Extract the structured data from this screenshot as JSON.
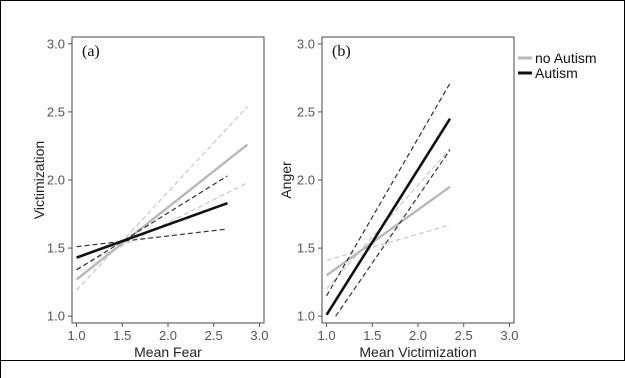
{
  "chart_data": [
    {
      "type": "line",
      "panel_label": "(a)",
      "xlabel": "Mean Fear",
      "ylabel": "Victimization",
      "xlim": [
        0.95,
        3.05
      ],
      "ylim": [
        0.95,
        3.05
      ],
      "x_ticks": [
        "1.0",
        "1.5",
        "2.0",
        "2.5",
        "3.0"
      ],
      "y_ticks": [
        "1.0",
        "1.5",
        "2.0",
        "2.5",
        "3.0"
      ],
      "series": [
        {
          "name": "no Autism",
          "color": "#b8b8b8",
          "style": "solid",
          "x": [
            1.0,
            2.87
          ],
          "y": [
            1.27,
            2.26
          ]
        },
        {
          "name": "no Autism",
          "color": "#c8c8c8",
          "style": "dashed",
          "x": [
            1.0,
            2.87
          ],
          "y": [
            1.19,
            2.54
          ]
        },
        {
          "name": "no Autism",
          "color": "#c8c8c8",
          "style": "dashed",
          "x": [
            1.0,
            2.87
          ],
          "y": [
            1.35,
            1.98
          ]
        },
        {
          "name": "Autism",
          "color": "#111111",
          "style": "solid",
          "x": [
            1.0,
            2.65
          ],
          "y": [
            1.43,
            1.83
          ]
        },
        {
          "name": "Autism",
          "color": "#333333",
          "style": "dashed",
          "x": [
            1.0,
            2.65
          ],
          "y": [
            1.34,
            2.03
          ]
        },
        {
          "name": "Autism",
          "color": "#333333",
          "style": "dashed",
          "x": [
            1.0,
            2.65
          ],
          "y": [
            1.51,
            1.64
          ]
        }
      ]
    },
    {
      "type": "line",
      "panel_label": "(b)",
      "xlabel": "Mean Victimization",
      "ylabel": "Anger",
      "xlim": [
        0.95,
        3.05
      ],
      "ylim": [
        0.95,
        3.05
      ],
      "x_ticks": [
        "1.0",
        "1.5",
        "2.0",
        "2.5",
        "3.0"
      ],
      "y_ticks": [
        "1.0",
        "1.5",
        "2.0",
        "2.5",
        "3.0"
      ],
      "series": [
        {
          "name": "no Autism",
          "color": "#b8b8b8",
          "style": "solid",
          "x": [
            1.0,
            2.35
          ],
          "y": [
            1.3,
            1.95
          ]
        },
        {
          "name": "no Autism",
          "color": "#c8c8c8",
          "style": "dashed",
          "x": [
            1.0,
            2.35
          ],
          "y": [
            1.2,
            2.23
          ]
        },
        {
          "name": "no Autism",
          "color": "#c8c8c8",
          "style": "dashed",
          "x": [
            1.0,
            2.35
          ],
          "y": [
            1.41,
            1.67
          ]
        },
        {
          "name": "Autism",
          "color": "#111111",
          "style": "solid",
          "x": [
            1.0,
            2.35
          ],
          "y": [
            1.01,
            2.45
          ]
        },
        {
          "name": "Autism",
          "color": "#333333",
          "style": "dashed",
          "x": [
            1.0,
            2.35
          ],
          "y": [
            1.15,
            2.71
          ]
        },
        {
          "name": "Autism",
          "color": "#333333",
          "style": "dashed",
          "x": [
            1.1,
            2.35
          ],
          "y": [
            1.0,
            2.22
          ]
        }
      ]
    }
  ],
  "legend": {
    "placement": "top-right",
    "items": [
      {
        "label": "no Autism",
        "color": "#b8b8b8"
      },
      {
        "label": "Autism",
        "color": "#111111"
      }
    ]
  }
}
